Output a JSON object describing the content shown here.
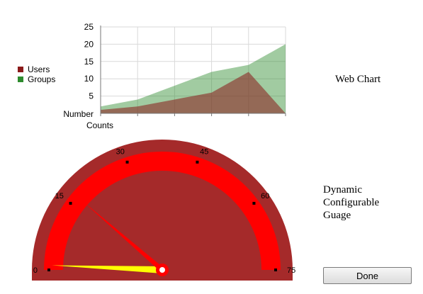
{
  "chart_data": {
    "type": "area",
    "x": [
      0,
      1,
      2,
      3,
      4,
      5
    ],
    "series": [
      {
        "name": "Users",
        "values": [
          1,
          2,
          4,
          6,
          12,
          0
        ],
        "color": "#8b1a1a"
      },
      {
        "name": "Groups",
        "values": [
          2,
          4,
          8,
          12,
          14,
          20
        ],
        "color": "#2e8b2e"
      }
    ],
    "ylabel": "Number",
    "xlabel": "Counts",
    "ylim": [
      0,
      25
    ],
    "yticks": [
      "5",
      "10",
      "15",
      "20",
      "25"
    ],
    "grid": true,
    "legend_position": "left"
  },
  "web_chart_label": "Web Chart",
  "gauge": {
    "label_lines": [
      "Dynamic",
      "Configurable",
      "Guage"
    ],
    "min": 0,
    "max": 75,
    "ticks": [
      "0",
      "15",
      "30",
      "45",
      "60",
      "75"
    ],
    "needle_values": [
      1,
      17
    ],
    "colors": {
      "outer": "#a52a2a",
      "band": "#ff0000",
      "inner": "#a52a2a"
    }
  },
  "done_label": "Done"
}
